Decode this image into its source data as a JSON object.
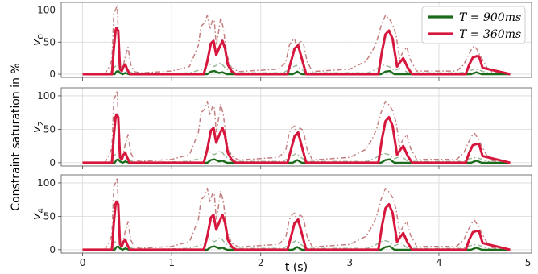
{
  "chart_data": {
    "type": "line",
    "shared_xlabel": "t (s)",
    "shared_ylabel": "Constraint saturation in %",
    "xlim": [
      -0.24,
      5.04
    ],
    "ylim": [
      -5,
      112
    ],
    "x_ticks": [
      "0",
      "1",
      "2",
      "3",
      "4",
      "5"
    ],
    "y_ticks": [
      "0",
      "50",
      "100"
    ],
    "grid": true,
    "legend": {
      "placement": "top-right",
      "entries": [
        {
          "label": "T = 900ms",
          "color": "#1a6b1a"
        },
        {
          "label": "T = 360ms",
          "color": "#d6163c"
        }
      ]
    },
    "panels": [
      {
        "ylabel": "v0",
        "ylabel_base": "v",
        "ylabel_sub": "0"
      },
      {
        "ylabel": "v2",
        "ylabel_base": "v",
        "ylabel_sub": "2"
      },
      {
        "ylabel": "v4",
        "ylabel_base": "v",
        "ylabel_sub": "4"
      }
    ],
    "series": [
      {
        "name": "T = 360ms",
        "color": "#d6163c",
        "style": "solid",
        "x": [
          0,
          0.33,
          0.35,
          0.37,
          0.38,
          0.4,
          0.42,
          0.44,
          0.46,
          0.48,
          0.5,
          0.53,
          1.36,
          1.4,
          1.44,
          1.47,
          1.5,
          1.53,
          1.57,
          1.6,
          1.63,
          1.67,
          1.72,
          2.3,
          2.34,
          2.38,
          2.42,
          2.46,
          2.51,
          3.32,
          3.36,
          3.4,
          3.44,
          3.48,
          3.53,
          3.56,
          3.6,
          3.65,
          3.7,
          4.3,
          4.34,
          4.38,
          4.42,
          4.45,
          4.49,
          4.8
        ],
        "y": [
          0,
          0,
          40,
          68,
          72,
          68,
          8,
          5,
          12,
          15,
          8,
          0,
          0,
          20,
          48,
          52,
          30,
          40,
          52,
          40,
          15,
          5,
          0,
          0,
          20,
          40,
          45,
          25,
          0,
          0,
          35,
          62,
          68,
          55,
          12,
          18,
          25,
          10,
          0,
          0,
          15,
          26,
          28,
          28,
          10,
          0
        ]
      },
      {
        "name": "T = 360ms (dash-dot)",
        "color": "#c48080",
        "style": "dashdot",
        "x": [
          0,
          0.25,
          0.3,
          0.33,
          0.35,
          0.37,
          0.39,
          0.41,
          0.43,
          0.45,
          0.48,
          0.51,
          0.54,
          0.58,
          0.65,
          1.0,
          1.2,
          1.3,
          1.33,
          1.37,
          1.4,
          1.43,
          1.46,
          1.48,
          1.5,
          1.52,
          1.55,
          1.58,
          1.62,
          1.67,
          1.75,
          2.2,
          2.28,
          2.32,
          2.35,
          2.38,
          2.41,
          2.44,
          2.48,
          2.52,
          2.58,
          3.0,
          3.18,
          3.25,
          3.3,
          3.35,
          3.4,
          3.45,
          3.48,
          3.52,
          3.56,
          3.6,
          3.64,
          3.68,
          3.75,
          4.2,
          4.28,
          4.33,
          4.37,
          4.4,
          4.43,
          4.46,
          4.5,
          4.55,
          4.6,
          4.8
        ],
        "y": [
          0,
          0,
          12,
          22,
          95,
          100,
          108,
          20,
          10,
          8,
          28,
          42,
          15,
          4,
          2,
          5,
          12,
          45,
          75,
          80,
          92,
          70,
          85,
          82,
          45,
          60,
          88,
          72,
          30,
          10,
          4,
          8,
          18,
          45,
          52,
          55,
          40,
          52,
          48,
          20,
          4,
          8,
          20,
          35,
          50,
          75,
          92,
          85,
          78,
          60,
          25,
          35,
          42,
          22,
          5,
          5,
          15,
          30,
          40,
          44,
          38,
          30,
          20,
          8,
          3,
          0
        ]
      },
      {
        "name": "T = 900ms",
        "color": "#1a6b1a",
        "style": "solid",
        "x": [
          0,
          0.36,
          0.38,
          0.4,
          0.42,
          0.45,
          0.48,
          0.52,
          1.4,
          1.44,
          1.48,
          1.53,
          1.57,
          1.62,
          2.36,
          2.41,
          2.46,
          3.35,
          3.4,
          3.45,
          3.5,
          4.36,
          4.42,
          4.48,
          4.8
        ],
        "y": [
          0,
          0,
          4,
          5,
          2,
          0,
          2,
          0,
          0,
          4,
          5,
          2,
          3,
          0,
          0,
          4,
          0,
          0,
          4,
          5,
          0,
          0,
          3,
          0,
          0
        ]
      },
      {
        "name": "T = 900ms (dash-dot)",
        "color": "#9cba9c",
        "style": "dashdot",
        "x": [
          0,
          0.3,
          0.35,
          0.4,
          0.45,
          0.5,
          0.6,
          1.2,
          1.35,
          1.42,
          1.48,
          1.55,
          1.6,
          1.68,
          2.25,
          2.35,
          2.4,
          2.45,
          2.52,
          3.2,
          3.3,
          3.38,
          3.44,
          3.5,
          3.58,
          3.65,
          4.25,
          4.35,
          4.42,
          4.5,
          4.6,
          4.8
        ],
        "y": [
          0,
          0,
          10,
          16,
          8,
          5,
          0,
          2,
          8,
          16,
          12,
          18,
          10,
          2,
          2,
          10,
          14,
          8,
          2,
          2,
          8,
          14,
          12,
          6,
          10,
          2,
          2,
          6,
          8,
          4,
          0,
          0
        ]
      }
    ]
  }
}
